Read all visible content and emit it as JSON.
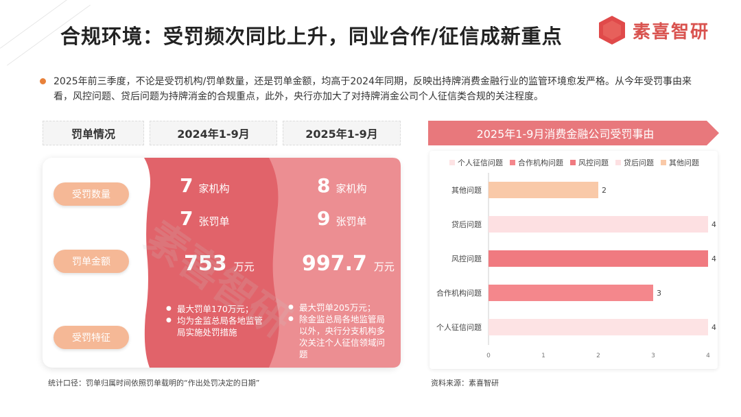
{
  "header": {
    "title": "合规环境：受罚频次同比上升，同业合作/征信成新重点",
    "logo_text": "素喜智研"
  },
  "intro": "2025年前三季度，不论是受罚机构/罚单数量，还是罚单金额，均高于2024年同期，反映出持牌消费金融行业的监管环境愈发严格。从今年受罚事由来看，风控问题、贷后问题为持牌消金的合规重点，此外，央行亦加大了对持牌消金公司个人征信类合规的关注程度。",
  "table": {
    "headers": [
      "罚单情况",
      "2024年1-9月",
      "2025年1-9月"
    ],
    "rows": [
      "受罚数量",
      "罚单金额",
      "受罚特征"
    ],
    "y2024": {
      "institutions": "7",
      "institutions_unit": "家机构",
      "tickets": "7",
      "tickets_unit": "张罚单",
      "amount": "753",
      "amount_unit": "万元",
      "features": [
        "最大罚单170万元；",
        "均为金监总局各地监管局实施处罚措施"
      ]
    },
    "y2025": {
      "institutions": "8",
      "institutions_unit": "家机构",
      "tickets": "9",
      "tickets_unit": "张罚单",
      "amount": "997.7",
      "amount_unit": "万元",
      "features": [
        "最大罚单205万元；",
        "除金监总局各地监管局以外，央行分支机构多次关注个人征信领域问题"
      ]
    },
    "footnote": "统计口径：罚单归属时间依照罚单载明的“作出处罚决定的日期”"
  },
  "source": "资料来源：素喜智研",
  "colors": {
    "accent": "#e3666b",
    "col2024": "#e1636a",
    "col2025": "#ec8e92",
    "pill": "#f5b896",
    "banner": "#e8787c"
  },
  "chart_data": {
    "type": "bar",
    "orientation": "horizontal",
    "title": "2025年1-9月消费金融公司受罚事由",
    "categories": [
      "其他问题",
      "贷后问题",
      "风控问题",
      "合作机构问题",
      "个人征信问题"
    ],
    "values": [
      2,
      4,
      4,
      3,
      4
    ],
    "bar_colors": [
      "#f9c9a8",
      "#fde0e2",
      "#f07a80",
      "#f4878c",
      "#fde3e4"
    ],
    "legend": [
      {
        "name": "个人征信问题",
        "color": "#fde3e4"
      },
      {
        "name": "合作机构问题",
        "color": "#f4878c"
      },
      {
        "name": "风控问题",
        "color": "#f07a80"
      },
      {
        "name": "贷后问题",
        "color": "#fde0e2"
      },
      {
        "name": "其他问题",
        "color": "#f9c9a8"
      }
    ],
    "legend_position": "top",
    "xlim": [
      0,
      4
    ],
    "xticks": [
      "0",
      "1",
      "2",
      "3",
      "4"
    ],
    "grid": false
  }
}
